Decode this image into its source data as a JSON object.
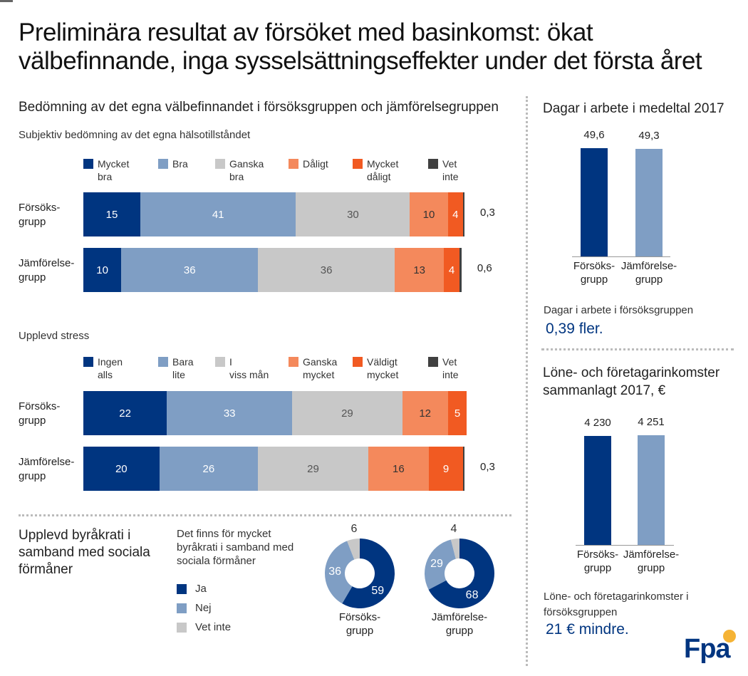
{
  "title": "Preliminära resultat av försöket med basinkomst: ökat välbefinnande, inga sysselsättningseffekter under det första året",
  "colors": {
    "dark_blue": "#003580",
    "blue": "#7f9ec4",
    "gray": "#c8c8c8",
    "orange": "#f4895c",
    "red": "#f15a22",
    "dark": "#404040"
  },
  "wellbeing": {
    "heading": "Bedömning av det egna välbefinnandet i försöksgruppen och jämförelsegruppen"
  },
  "chart_data": [
    {
      "type": "bar",
      "stacked": true,
      "orientation": "horizontal",
      "title": "Subjektiv bedömning av det egna hälsotillståndet",
      "legend": [
        "Mycket bra",
        "Bra",
        "Ganska bra",
        "Dåligt",
        "Mycket dåligt",
        "Vet inte"
      ],
      "categories": [
        "Försöks-grupp",
        "Jämförelse-grupp"
      ],
      "values": [
        [
          15,
          41,
          30,
          10,
          4,
          0.3
        ],
        [
          10,
          36,
          36,
          13,
          4,
          0.6
        ]
      ],
      "labels": [
        [
          "15",
          "41",
          "30",
          "10",
          "4",
          "0,3"
        ],
        [
          "10",
          "36",
          "36",
          "13",
          "4",
          "0,6"
        ]
      ]
    },
    {
      "type": "bar",
      "stacked": true,
      "orientation": "horizontal",
      "title": "Upplevd stress",
      "legend": [
        "Ingen alls",
        "Bara lite",
        "I viss mån",
        "Ganska mycket",
        "Väldigt mycket",
        "Vet inte"
      ],
      "categories": [
        "Försöks-grupp",
        "Jämförelse-grupp"
      ],
      "values": [
        [
          22,
          33,
          29,
          12,
          5,
          0
        ],
        [
          20,
          26,
          29,
          16,
          9,
          0.3
        ]
      ],
      "labels": [
        [
          "22",
          "33",
          "29",
          "12",
          "5",
          ""
        ],
        [
          "20",
          "26",
          "29",
          "16",
          "9",
          "0,3"
        ]
      ]
    },
    {
      "type": "pie",
      "donut": true,
      "title": "Det finns för mycket byråkrati i samband med sociala förmåner",
      "legend": [
        "Ja",
        "Nej",
        "Vet inte"
      ],
      "groups": [
        {
          "name": "Försöks-grupp",
          "values": [
            59,
            36,
            6
          ]
        },
        {
          "name": "Jämförelse-grupp",
          "values": [
            68,
            29,
            4
          ]
        }
      ]
    },
    {
      "type": "bar",
      "title": "Dagar i arbete i medeltal 2017",
      "categories": [
        "Försöks-grupp",
        "Jämförelse-grupp"
      ],
      "values": [
        49.6,
        49.3
      ],
      "labels": [
        "49,6",
        "49,3"
      ],
      "ylim": [
        0,
        50
      ]
    },
    {
      "type": "bar",
      "title": "Löne- och företagarinkomster sammanlagt 2017, €",
      "categories": [
        "Försöks-grupp",
        "Jämförelse-grupp"
      ],
      "values": [
        4230,
        4251
      ],
      "labels": [
        "4 230",
        "4 251"
      ],
      "ylim": [
        0,
        4300
      ]
    }
  ],
  "bureaucracy": {
    "heading": "Upplevd byråkrati i samband med sociala förmåner"
  },
  "days": {
    "note": "Dagar i arbete i försöksgruppen",
    "highlight": "0,39 fler."
  },
  "income": {
    "note": "Löne- och företagarinkomster i försöksgruppen",
    "highlight": "21 € mindre."
  },
  "logo": "Fpa"
}
